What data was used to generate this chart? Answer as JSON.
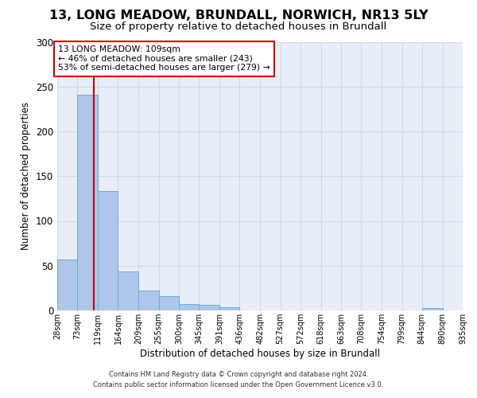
{
  "title": "13, LONG MEADOW, BRUNDALL, NORWICH, NR13 5LY",
  "subtitle": "Size of property relative to detached houses in Brundall",
  "xlabel": "Distribution of detached houses by size in Brundall",
  "ylabel": "Number of detached properties",
  "footnote1": "Contains HM Land Registry data © Crown copyright and database right 2024.",
  "footnote2": "Contains public sector information licensed under the Open Government Licence v3.0.",
  "annotation_line1": "13 LONG MEADOW: 109sqm",
  "annotation_line2": "← 46% of detached houses are smaller (243)",
  "annotation_line3": "53% of semi-detached houses are larger (279) →",
  "bar_left_edges": [
    28,
    73,
    119,
    164,
    209,
    255,
    300,
    345,
    391,
    436,
    482,
    527,
    572,
    618,
    663,
    708,
    754,
    799,
    844,
    890
  ],
  "bar_widths": [
    45,
    46,
    45,
    45,
    46,
    45,
    45,
    46,
    45,
    46,
    45,
    45,
    46,
    45,
    45,
    46,
    45,
    45,
    46,
    45
  ],
  "bar_heights": [
    57,
    241,
    133,
    44,
    22,
    16,
    7,
    6,
    4,
    0,
    0,
    0,
    0,
    0,
    0,
    0,
    0,
    0,
    3,
    0
  ],
  "bar_color": "#aec6e8",
  "bar_edge_color": "#6aaed6",
  "vline_color": "#cc0000",
  "vline_x": 109,
  "xlim": [
    28,
    935
  ],
  "ylim": [
    0,
    300
  ],
  "yticks": [
    0,
    50,
    100,
    150,
    200,
    250,
    300
  ],
  "xtick_labels": [
    "28sqm",
    "73sqm",
    "119sqm",
    "164sqm",
    "209sqm",
    "255sqm",
    "300sqm",
    "345sqm",
    "391sqm",
    "436sqm",
    "482sqm",
    "527sqm",
    "572sqm",
    "618sqm",
    "663sqm",
    "708sqm",
    "754sqm",
    "799sqm",
    "844sqm",
    "890sqm",
    "935sqm"
  ],
  "xtick_positions": [
    28,
    73,
    119,
    164,
    209,
    255,
    300,
    345,
    391,
    436,
    482,
    527,
    572,
    618,
    663,
    708,
    754,
    799,
    844,
    890,
    935
  ],
  "grid_color": "#d0d8e8",
  "bg_color": "#e8eef8",
  "fig_bg_color": "#ffffff",
  "title_fontsize": 11.5,
  "subtitle_fontsize": 9.5,
  "annotation_fontsize": 7.8,
  "xlabel_fontsize": 8.5,
  "ylabel_fontsize": 8.5,
  "annotation_box_color": "#ffffff",
  "annotation_box_edge": "#cc0000"
}
